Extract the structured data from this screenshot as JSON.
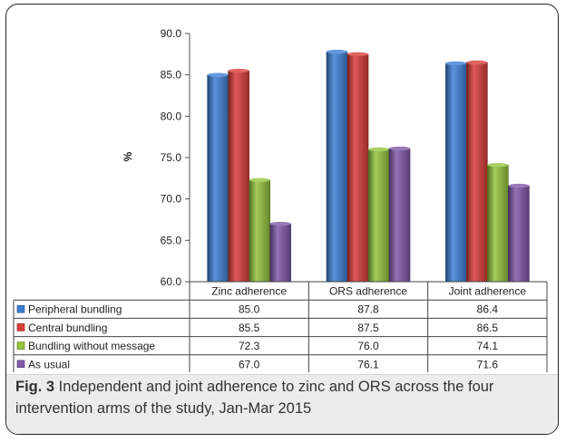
{
  "chart_data": {
    "type": "bar",
    "ylabel": "%",
    "ylim": [
      60,
      90
    ],
    "yticks": [
      "60.0",
      "65.0",
      "70.0",
      "75.0",
      "80.0",
      "85.0",
      "90.0"
    ],
    "categories": [
      "Zinc adherence",
      "ORS adherence",
      "Joint adherence"
    ],
    "series": [
      {
        "name": "Peripheral bundling",
        "color": "#3f7fd6",
        "values": [
          85.0,
          87.8,
          86.4
        ],
        "labels": [
          "85.0",
          "87.8",
          "86.4"
        ]
      },
      {
        "name": "Central bundling",
        "color": "#d93d3a",
        "values": [
          85.5,
          87.5,
          86.5
        ],
        "labels": [
          "85.5",
          "87.5",
          "86.5"
        ]
      },
      {
        "name": "Bundling without message",
        "color": "#94c43e",
        "values": [
          72.3,
          76.0,
          74.1
        ],
        "labels": [
          "72.3",
          "76.0",
          "74.1"
        ]
      },
      {
        "name": "As usual",
        "color": "#8059a8",
        "values": [
          67.0,
          76.1,
          71.6
        ],
        "labels": [
          "67.0",
          "76.1",
          "71.6"
        ]
      }
    ],
    "legend_placement": "data-table"
  },
  "caption": {
    "label": "Fig. 3",
    "text": " Independent and joint adherence to zinc and ORS across the four intervention arms of the study, Jan-Mar 2015"
  }
}
